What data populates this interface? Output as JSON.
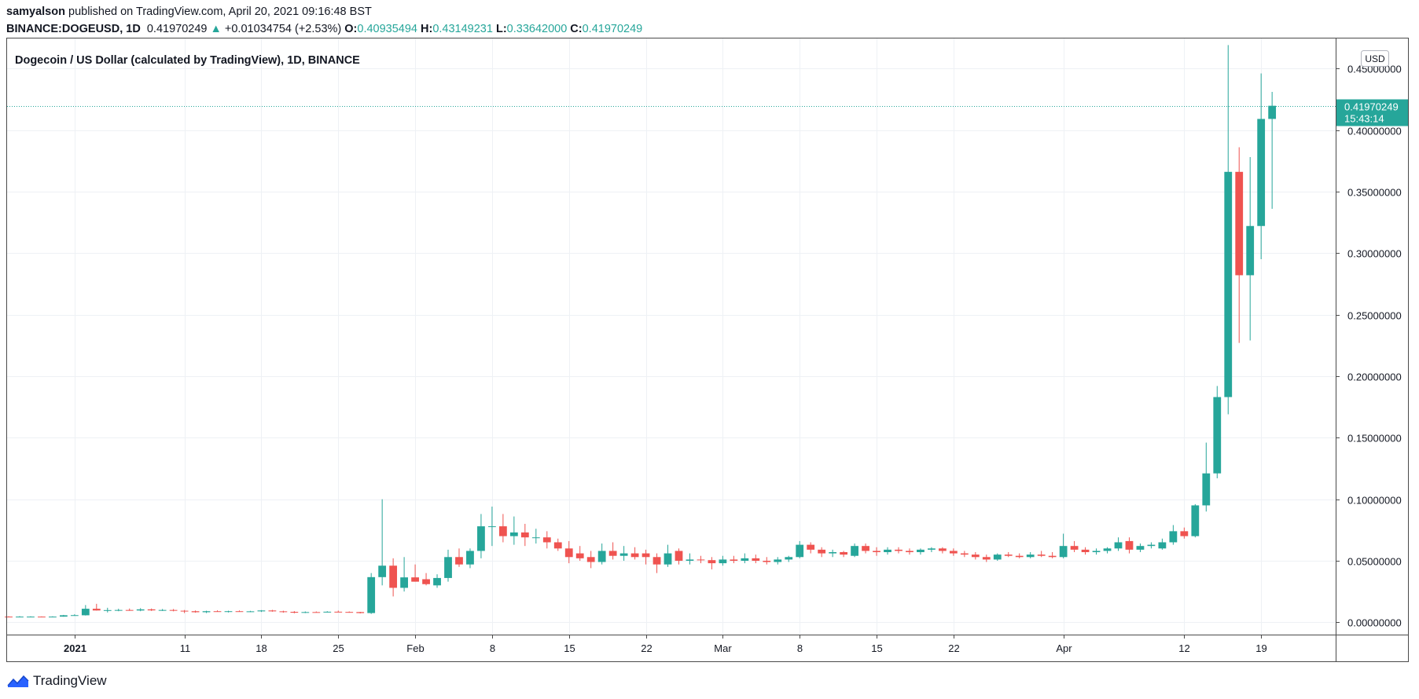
{
  "header": {
    "author": "samyalson",
    "published_text": "published on TradingView.com, April 20, 2021 09:16:48 BST",
    "symbol": "BINANCE:DOGEUSD, 1D",
    "last": "0.41970249",
    "change_arrow": "▲",
    "change": "+0.01034754 (+2.53%)",
    "o_label": "O:",
    "o": "0.40935494",
    "h_label": "H:",
    "h": "0.43149231",
    "l_label": "L:",
    "l": "0.33642000",
    "c_label": "C:",
    "c": "0.41970249"
  },
  "footer": {
    "brand": "TradingView",
    "logo_icon": "tradingview-logo-icon"
  },
  "chart_data": {
    "type": "candlestick",
    "title": "Dogecoin / US Dollar (calculated by TradingView), 1D, BINANCE",
    "currency": "USD",
    "last_price_label": "0.41970249",
    "countdown_label": "15:43:14",
    "y_ticks": [
      "0.00000000",
      "0.05000000",
      "0.10000000",
      "0.15000000",
      "0.20000000",
      "0.25000000",
      "0.30000000",
      "0.35000000",
      "0.40000000",
      "0.45000000"
    ],
    "ylim": [
      -0.01,
      0.475
    ],
    "x_ticks": [
      {
        "date": "2021-01-01",
        "label": "2021",
        "bold": true
      },
      {
        "date": "2021-01-11",
        "label": "11"
      },
      {
        "date": "2021-01-18",
        "label": "18"
      },
      {
        "date": "2021-01-25",
        "label": "25"
      },
      {
        "date": "2021-02-01",
        "label": "Feb"
      },
      {
        "date": "2021-02-08",
        "label": "8"
      },
      {
        "date": "2021-02-15",
        "label": "15"
      },
      {
        "date": "2021-02-22",
        "label": "22"
      },
      {
        "date": "2021-03-01",
        "label": "Mar"
      },
      {
        "date": "2021-03-08",
        "label": "8"
      },
      {
        "date": "2021-03-15",
        "label": "15"
      },
      {
        "date": "2021-03-22",
        "label": "22"
      },
      {
        "date": "2021-04-01",
        "label": "Apr"
      },
      {
        "date": "2021-04-12",
        "label": "12"
      },
      {
        "date": "2021-04-19",
        "label": "19"
      }
    ],
    "xlim": [
      "2020-12-26",
      "2021-04-26"
    ],
    "up_color": "#26a69a",
    "down_color": "#ef5350",
    "candles": [
      {
        "date": "2020-12-26",
        "o": 0.0046,
        "h": 0.0049,
        "l": 0.0044,
        "c": 0.0045
      },
      {
        "date": "2020-12-27",
        "o": 0.0045,
        "h": 0.005,
        "l": 0.0043,
        "c": 0.0046
      },
      {
        "date": "2020-12-28",
        "o": 0.0046,
        "h": 0.0049,
        "l": 0.0044,
        "c": 0.0046
      },
      {
        "date": "2020-12-29",
        "o": 0.0046,
        "h": 0.0048,
        "l": 0.0044,
        "c": 0.0045
      },
      {
        "date": "2020-12-30",
        "o": 0.0045,
        "h": 0.0049,
        "l": 0.0044,
        "c": 0.0046
      },
      {
        "date": "2020-12-31",
        "o": 0.0046,
        "h": 0.006,
        "l": 0.0045,
        "c": 0.0057
      },
      {
        "date": "2021-01-01",
        "o": 0.0057,
        "h": 0.0065,
        "l": 0.0053,
        "c": 0.0058
      },
      {
        "date": "2021-01-02",
        "o": 0.0057,
        "h": 0.014,
        "l": 0.0055,
        "c": 0.011
      },
      {
        "date": "2021-01-03",
        "o": 0.011,
        "h": 0.015,
        "l": 0.0095,
        "c": 0.0096
      },
      {
        "date": "2021-01-04",
        "o": 0.0098,
        "h": 0.0118,
        "l": 0.008,
        "c": 0.0099
      },
      {
        "date": "2021-01-05",
        "o": 0.0096,
        "h": 0.011,
        "l": 0.009,
        "c": 0.01
      },
      {
        "date": "2021-01-06",
        "o": 0.01,
        "h": 0.0112,
        "l": 0.0093,
        "c": 0.0099
      },
      {
        "date": "2021-01-07",
        "o": 0.0096,
        "h": 0.0115,
        "l": 0.009,
        "c": 0.0105
      },
      {
        "date": "2021-01-08",
        "o": 0.0105,
        "h": 0.0112,
        "l": 0.0092,
        "c": 0.0097
      },
      {
        "date": "2021-01-09",
        "o": 0.0097,
        "h": 0.0108,
        "l": 0.0092,
        "c": 0.01
      },
      {
        "date": "2021-01-10",
        "o": 0.01,
        "h": 0.0108,
        "l": 0.0089,
        "c": 0.0094
      },
      {
        "date": "2021-01-11",
        "o": 0.0094,
        "h": 0.01,
        "l": 0.0075,
        "c": 0.009
      },
      {
        "date": "2021-01-12",
        "o": 0.009,
        "h": 0.0096,
        "l": 0.0078,
        "c": 0.0082
      },
      {
        "date": "2021-01-13",
        "o": 0.0082,
        "h": 0.0094,
        "l": 0.0075,
        "c": 0.009
      },
      {
        "date": "2021-01-14",
        "o": 0.009,
        "h": 0.0097,
        "l": 0.0085,
        "c": 0.0088
      },
      {
        "date": "2021-01-15",
        "o": 0.0088,
        "h": 0.0094,
        "l": 0.008,
        "c": 0.009
      },
      {
        "date": "2021-01-16",
        "o": 0.009,
        "h": 0.0096,
        "l": 0.0085,
        "c": 0.0088
      },
      {
        "date": "2021-01-17",
        "o": 0.0088,
        "h": 0.0093,
        "l": 0.0083,
        "c": 0.0089
      },
      {
        "date": "2021-01-18",
        "o": 0.0089,
        "h": 0.0099,
        "l": 0.0084,
        "c": 0.0096
      },
      {
        "date": "2021-01-19",
        "o": 0.0096,
        "h": 0.0101,
        "l": 0.0086,
        "c": 0.0089
      },
      {
        "date": "2021-01-20",
        "o": 0.0089,
        "h": 0.0094,
        "l": 0.0078,
        "c": 0.0085
      },
      {
        "date": "2021-01-21",
        "o": 0.0085,
        "h": 0.0091,
        "l": 0.0073,
        "c": 0.0078
      },
      {
        "date": "2021-01-22",
        "o": 0.0078,
        "h": 0.0088,
        "l": 0.0075,
        "c": 0.0083
      },
      {
        "date": "2021-01-23",
        "o": 0.0083,
        "h": 0.0088,
        "l": 0.008,
        "c": 0.0082
      },
      {
        "date": "2021-01-24",
        "o": 0.0082,
        "h": 0.009,
        "l": 0.008,
        "c": 0.0086
      },
      {
        "date": "2021-01-25",
        "o": 0.0086,
        "h": 0.0095,
        "l": 0.0082,
        "c": 0.0084
      },
      {
        "date": "2021-01-26",
        "o": 0.0084,
        "h": 0.0088,
        "l": 0.0078,
        "c": 0.0083
      },
      {
        "date": "2021-01-27",
        "o": 0.0083,
        "h": 0.0085,
        "l": 0.0072,
        "c": 0.0075
      },
      {
        "date": "2021-01-28",
        "o": 0.0075,
        "h": 0.04,
        "l": 0.0068,
        "c": 0.0367
      },
      {
        "date": "2021-01-29",
        "o": 0.0367,
        "h": 0.1,
        "l": 0.03,
        "c": 0.046
      },
      {
        "date": "2021-01-30",
        "o": 0.046,
        "h": 0.052,
        "l": 0.021,
        "c": 0.028
      },
      {
        "date": "2021-01-31",
        "o": 0.028,
        "h": 0.053,
        "l": 0.025,
        "c": 0.0365
      },
      {
        "date": "2021-02-01",
        "o": 0.0365,
        "h": 0.047,
        "l": 0.033,
        "c": 0.033
      },
      {
        "date": "2021-02-02",
        "o": 0.035,
        "h": 0.04,
        "l": 0.03,
        "c": 0.031
      },
      {
        "date": "2021-02-03",
        "o": 0.03,
        "h": 0.039,
        "l": 0.028,
        "c": 0.036
      },
      {
        "date": "2021-02-04",
        "o": 0.036,
        "h": 0.059,
        "l": 0.033,
        "c": 0.053
      },
      {
        "date": "2021-02-05",
        "o": 0.053,
        "h": 0.06,
        "l": 0.045,
        "c": 0.047
      },
      {
        "date": "2021-02-06",
        "o": 0.047,
        "h": 0.06,
        "l": 0.044,
        "c": 0.058
      },
      {
        "date": "2021-02-07",
        "o": 0.058,
        "h": 0.088,
        "l": 0.052,
        "c": 0.078
      },
      {
        "date": "2021-02-08",
        "o": 0.078,
        "h": 0.094,
        "l": 0.062,
        "c": 0.078
      },
      {
        "date": "2021-02-09",
        "o": 0.078,
        "h": 0.088,
        "l": 0.065,
        "c": 0.07
      },
      {
        "date": "2021-02-10",
        "o": 0.07,
        "h": 0.086,
        "l": 0.063,
        "c": 0.073
      },
      {
        "date": "2021-02-11",
        "o": 0.073,
        "h": 0.08,
        "l": 0.062,
        "c": 0.069
      },
      {
        "date": "2021-02-12",
        "o": 0.069,
        "h": 0.076,
        "l": 0.064,
        "c": 0.069
      },
      {
        "date": "2021-02-13",
        "o": 0.069,
        "h": 0.074,
        "l": 0.06,
        "c": 0.065
      },
      {
        "date": "2021-02-14",
        "o": 0.065,
        "h": 0.068,
        "l": 0.058,
        "c": 0.06
      },
      {
        "date": "2021-02-15",
        "o": 0.06,
        "h": 0.066,
        "l": 0.048,
        "c": 0.053
      },
      {
        "date": "2021-02-16",
        "o": 0.056,
        "h": 0.062,
        "l": 0.05,
        "c": 0.052
      },
      {
        "date": "2021-02-17",
        "o": 0.053,
        "h": 0.058,
        "l": 0.044,
        "c": 0.049
      },
      {
        "date": "2021-02-18",
        "o": 0.049,
        "h": 0.064,
        "l": 0.047,
        "c": 0.058
      },
      {
        "date": "2021-02-19",
        "o": 0.058,
        "h": 0.065,
        "l": 0.051,
        "c": 0.054
      },
      {
        "date": "2021-02-20",
        "o": 0.054,
        "h": 0.062,
        "l": 0.05,
        "c": 0.056
      },
      {
        "date": "2021-02-21",
        "o": 0.056,
        "h": 0.061,
        "l": 0.051,
        "c": 0.053
      },
      {
        "date": "2021-02-22",
        "o": 0.056,
        "h": 0.059,
        "l": 0.047,
        "c": 0.053
      },
      {
        "date": "2021-02-23",
        "o": 0.053,
        "h": 0.056,
        "l": 0.04,
        "c": 0.047
      },
      {
        "date": "2021-02-24",
        "o": 0.047,
        "h": 0.063,
        "l": 0.045,
        "c": 0.056
      },
      {
        "date": "2021-02-25",
        "o": 0.058,
        "h": 0.06,
        "l": 0.047,
        "c": 0.05
      },
      {
        "date": "2021-02-26",
        "o": 0.05,
        "h": 0.056,
        "l": 0.047,
        "c": 0.051
      },
      {
        "date": "2021-02-27",
        "o": 0.051,
        "h": 0.054,
        "l": 0.048,
        "c": 0.0505
      },
      {
        "date": "2021-02-28",
        "o": 0.0505,
        "h": 0.053,
        "l": 0.043,
        "c": 0.048
      },
      {
        "date": "2021-03-01",
        "o": 0.048,
        "h": 0.054,
        "l": 0.046,
        "c": 0.051
      },
      {
        "date": "2021-03-02",
        "o": 0.051,
        "h": 0.054,
        "l": 0.048,
        "c": 0.05
      },
      {
        "date": "2021-03-03",
        "o": 0.05,
        "h": 0.056,
        "l": 0.048,
        "c": 0.052
      },
      {
        "date": "2021-03-04",
        "o": 0.052,
        "h": 0.055,
        "l": 0.048,
        "c": 0.05
      },
      {
        "date": "2021-03-05",
        "o": 0.05,
        "h": 0.053,
        "l": 0.047,
        "c": 0.049
      },
      {
        "date": "2021-03-06",
        "o": 0.049,
        "h": 0.053,
        "l": 0.047,
        "c": 0.051
      },
      {
        "date": "2021-03-07",
        "o": 0.051,
        "h": 0.054,
        "l": 0.049,
        "c": 0.053
      },
      {
        "date": "2021-03-08",
        "o": 0.053,
        "h": 0.066,
        "l": 0.052,
        "c": 0.063
      },
      {
        "date": "2021-03-09",
        "o": 0.063,
        "h": 0.065,
        "l": 0.056,
        "c": 0.059
      },
      {
        "date": "2021-03-10",
        "o": 0.059,
        "h": 0.061,
        "l": 0.053,
        "c": 0.056
      },
      {
        "date": "2021-03-11",
        "o": 0.056,
        "h": 0.059,
        "l": 0.053,
        "c": 0.057
      },
      {
        "date": "2021-03-12",
        "o": 0.057,
        "h": 0.058,
        "l": 0.053,
        "c": 0.055
      },
      {
        "date": "2021-03-13",
        "o": 0.054,
        "h": 0.064,
        "l": 0.053,
        "c": 0.062
      },
      {
        "date": "2021-03-14",
        "o": 0.062,
        "h": 0.064,
        "l": 0.056,
        "c": 0.058
      },
      {
        "date": "2021-03-15",
        "o": 0.058,
        "h": 0.061,
        "l": 0.054,
        "c": 0.057
      },
      {
        "date": "2021-03-16",
        "o": 0.057,
        "h": 0.061,
        "l": 0.055,
        "c": 0.059
      },
      {
        "date": "2021-03-17",
        "o": 0.059,
        "h": 0.061,
        "l": 0.056,
        "c": 0.058
      },
      {
        "date": "2021-03-18",
        "o": 0.058,
        "h": 0.06,
        "l": 0.055,
        "c": 0.057
      },
      {
        "date": "2021-03-19",
        "o": 0.057,
        "h": 0.06,
        "l": 0.055,
        "c": 0.059
      },
      {
        "date": "2021-03-20",
        "o": 0.059,
        "h": 0.061,
        "l": 0.057,
        "c": 0.06
      },
      {
        "date": "2021-03-21",
        "o": 0.06,
        "h": 0.061,
        "l": 0.056,
        "c": 0.058
      },
      {
        "date": "2021-03-22",
        "o": 0.058,
        "h": 0.06,
        "l": 0.054,
        "c": 0.056
      },
      {
        "date": "2021-03-23",
        "o": 0.056,
        "h": 0.058,
        "l": 0.053,
        "c": 0.055
      },
      {
        "date": "2021-03-24",
        "o": 0.055,
        "h": 0.057,
        "l": 0.051,
        "c": 0.053
      },
      {
        "date": "2021-03-25",
        "o": 0.053,
        "h": 0.055,
        "l": 0.049,
        "c": 0.051
      },
      {
        "date": "2021-03-26",
        "o": 0.051,
        "h": 0.056,
        "l": 0.05,
        "c": 0.055
      },
      {
        "date": "2021-03-27",
        "o": 0.055,
        "h": 0.057,
        "l": 0.053,
        "c": 0.054
      },
      {
        "date": "2021-03-28",
        "o": 0.054,
        "h": 0.056,
        "l": 0.052,
        "c": 0.053
      },
      {
        "date": "2021-03-29",
        "o": 0.053,
        "h": 0.057,
        "l": 0.052,
        "c": 0.055
      },
      {
        "date": "2021-03-30",
        "o": 0.055,
        "h": 0.058,
        "l": 0.053,
        "c": 0.054
      },
      {
        "date": "2021-03-31",
        "o": 0.054,
        "h": 0.057,
        "l": 0.052,
        "c": 0.053
      },
      {
        "date": "2021-04-01",
        "o": 0.053,
        "h": 0.072,
        "l": 0.052,
        "c": 0.062
      },
      {
        "date": "2021-04-02",
        "o": 0.062,
        "h": 0.066,
        "l": 0.057,
        "c": 0.059
      },
      {
        "date": "2021-04-03",
        "o": 0.059,
        "h": 0.061,
        "l": 0.055,
        "c": 0.057
      },
      {
        "date": "2021-04-04",
        "o": 0.057,
        "h": 0.06,
        "l": 0.055,
        "c": 0.058
      },
      {
        "date": "2021-04-05",
        "o": 0.058,
        "h": 0.061,
        "l": 0.056,
        "c": 0.06
      },
      {
        "date": "2021-04-06",
        "o": 0.06,
        "h": 0.069,
        "l": 0.058,
        "c": 0.065
      },
      {
        "date": "2021-04-07",
        "o": 0.066,
        "h": 0.069,
        "l": 0.056,
        "c": 0.059
      },
      {
        "date": "2021-04-08",
        "o": 0.059,
        "h": 0.064,
        "l": 0.057,
        "c": 0.062
      },
      {
        "date": "2021-04-09",
        "o": 0.062,
        "h": 0.065,
        "l": 0.06,
        "c": 0.063
      },
      {
        "date": "2021-04-10",
        "o": 0.06,
        "h": 0.068,
        "l": 0.059,
        "c": 0.065
      },
      {
        "date": "2021-04-11",
        "o": 0.065,
        "h": 0.079,
        "l": 0.063,
        "c": 0.074
      },
      {
        "date": "2021-04-12",
        "o": 0.074,
        "h": 0.077,
        "l": 0.068,
        "c": 0.07
      },
      {
        "date": "2021-04-13",
        "o": 0.07,
        "h": 0.096,
        "l": 0.069,
        "c": 0.095
      },
      {
        "date": "2021-04-14",
        "o": 0.095,
        "h": 0.146,
        "l": 0.09,
        "c": 0.121
      },
      {
        "date": "2021-04-15",
        "o": 0.121,
        "h": 0.192,
        "l": 0.117,
        "c": 0.183
      },
      {
        "date": "2021-04-16",
        "o": 0.183,
        "h": 0.469,
        "l": 0.169,
        "c": 0.366
      },
      {
        "date": "2021-04-17",
        "o": 0.366,
        "h": 0.386,
        "l": 0.227,
        "c": 0.282
      },
      {
        "date": "2021-04-18",
        "o": 0.282,
        "h": 0.378,
        "l": 0.229,
        "c": 0.322
      },
      {
        "date": "2021-04-19",
        "o": 0.322,
        "h": 0.446,
        "l": 0.295,
        "c": 0.409
      },
      {
        "date": "2021-04-20",
        "o": 0.409,
        "h": 0.431,
        "l": 0.336,
        "c": 0.4197
      }
    ]
  }
}
